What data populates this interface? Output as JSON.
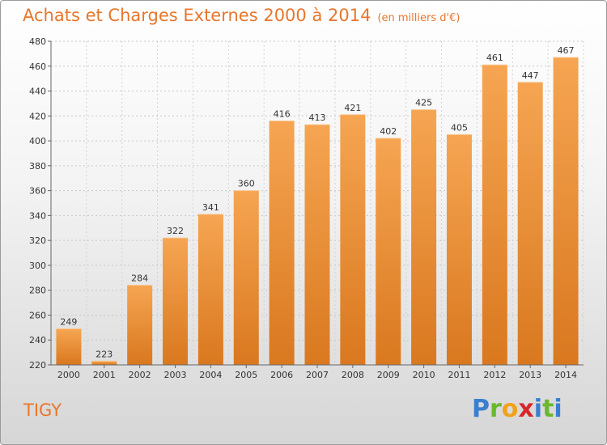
{
  "header": {
    "title": "Achats et Charges Externes 2000 à 2014",
    "unit": "(en milliers d'€)"
  },
  "footer": {
    "place": "TIGY",
    "brand_letters": [
      "P",
      "r",
      "o",
      "x",
      "i",
      "t",
      "i"
    ],
    "brand_colors": [
      "#3a7fd0",
      "#6ab82e",
      "#f0a21c",
      "#d9262c",
      "#3a7fd0",
      "#6ab82e",
      "#3a7fd0"
    ]
  },
  "colors": {
    "bar_top": "#f6a552",
    "bar_bottom": "#d9781f",
    "title": "#e8762c"
  },
  "chart_data": {
    "type": "bar",
    "title": "Achats et Charges Externes 2000 à 2014",
    "categories": [
      "2000",
      "2001",
      "2002",
      "2003",
      "2004",
      "2005",
      "2006",
      "2007",
      "2008",
      "2009",
      "2010",
      "2011",
      "2012",
      "2013",
      "2014"
    ],
    "values": [
      249,
      223,
      284,
      322,
      341,
      360,
      416,
      413,
      421,
      402,
      425,
      405,
      461,
      447,
      467
    ],
    "xlabel": "",
    "ylabel": "",
    "ylim": [
      220,
      480
    ],
    "yticks": [
      220,
      240,
      260,
      280,
      300,
      320,
      340,
      360,
      380,
      400,
      420,
      440,
      460,
      480
    ],
    "grid": true,
    "data_labels": true
  }
}
